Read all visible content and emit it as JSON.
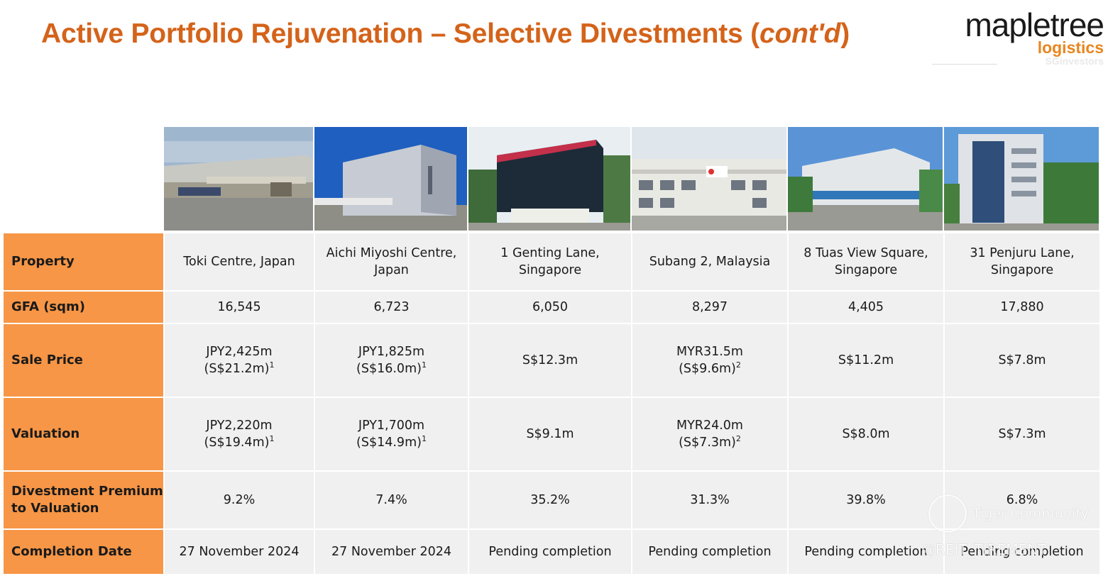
{
  "title": {
    "main": "Active Portfolio Rejuvenation – Selective Divestments (",
    "italic": "cont'd",
    "close": ")"
  },
  "logo": {
    "word": "mapletree",
    "sub": "logistics",
    "watermark": "SGinvestors"
  },
  "photos": [
    {
      "name": "toki-centre-photo"
    },
    {
      "name": "aichi-miyoshi-centre-photo"
    },
    {
      "name": "1-genting-lane-photo"
    },
    {
      "name": "subang-2-photo"
    },
    {
      "name": "8-tuas-view-square-photo"
    },
    {
      "name": "31-penjuru-lane-photo"
    }
  ],
  "table": {
    "headers": [
      "Property",
      "GFA (sqm)",
      "Sale Price",
      "Valuation",
      "Divestment Premium to Valuation",
      "Completion Date"
    ],
    "columns": [
      {
        "property": "Toki Centre, Japan",
        "gfa": "16,545",
        "sale_price": {
          "line1": "JPY2,425m",
          "line2": "(S$21.2m)",
          "note": "1"
        },
        "valuation": {
          "line1": "JPY2,220m",
          "line2": "(S$19.4m)",
          "note": "1"
        },
        "premium": "9.2%",
        "completion": "27 November 2024"
      },
      {
        "property": "Aichi Miyoshi Centre, Japan",
        "gfa": "6,723",
        "sale_price": {
          "line1": "JPY1,825m",
          "line2": "(S$16.0m)",
          "note": "1"
        },
        "valuation": {
          "line1": "JPY1,700m",
          "line2": "(S$14.9m)",
          "note": "1"
        },
        "premium": "7.4%",
        "completion": "27 November 2024"
      },
      {
        "property": "1 Genting Lane, Singapore",
        "gfa": "6,050",
        "sale_price": {
          "line1": "S$12.3m",
          "line2": "",
          "note": ""
        },
        "valuation": {
          "line1": "S$9.1m",
          "line2": "",
          "note": ""
        },
        "premium": "35.2%",
        "completion": "Pending completion"
      },
      {
        "property": "Subang 2, Malaysia",
        "gfa": "8,297",
        "sale_price": {
          "line1": "MYR31.5m",
          "line2": "(S$9.6m)",
          "note": "2"
        },
        "valuation": {
          "line1": "MYR24.0m",
          "line2": "(S$7.3m)",
          "note": "2"
        },
        "premium": "31.3%",
        "completion": "Pending completion"
      },
      {
        "property": "8 Tuas View Square, Singapore",
        "gfa": "4,405",
        "sale_price": {
          "line1": "S$11.2m",
          "line2": "",
          "note": ""
        },
        "valuation": {
          "line1": "S$8.0m",
          "line2": "",
          "note": ""
        },
        "premium": "39.8%",
        "completion": "Pending completion"
      },
      {
        "property": "31 Penjuru Lane, Singapore",
        "gfa": "17,880",
        "sale_price": {
          "line1": "S$7.8m",
          "line2": "",
          "note": ""
        },
        "valuation": {
          "line1": "S$7.3m",
          "line2": "",
          "note": ""
        },
        "premium": "6.8%",
        "completion": "Pending completion"
      }
    ]
  },
  "watermarks": {
    "tiger": "Tiger Community",
    "handle": "@REIT_TIREMENT"
  }
}
